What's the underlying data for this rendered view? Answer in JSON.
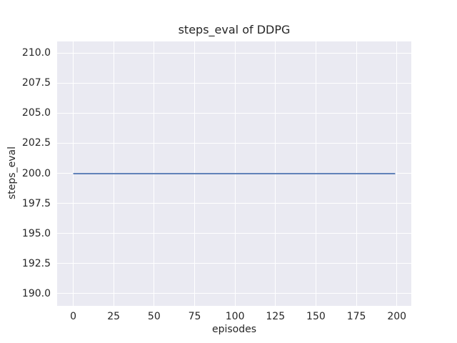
{
  "figure": {
    "background": "#ffffff",
    "text_color": "#262626"
  },
  "chart_data": {
    "type": "line",
    "title": "steps_eval of DDPG",
    "xlabel": "episodes",
    "ylabel": "steps_eval",
    "x_ticks": {
      "values": [
        0,
        25,
        50,
        75,
        100,
        125,
        150,
        175,
        200
      ],
      "labels": [
        "0",
        "25",
        "50",
        "75",
        "100",
        "125",
        "150",
        "175",
        "200"
      ]
    },
    "y_ticks": {
      "values": [
        190.0,
        192.5,
        195.0,
        197.5,
        200.0,
        202.5,
        205.0,
        207.5,
        210.0
      ],
      "labels": [
        "190.0",
        "192.5",
        "195.0",
        "197.5",
        "200.0",
        "202.5",
        "205.0",
        "207.5",
        "210.0"
      ]
    },
    "xlim": [
      -9.95,
      208.95
    ],
    "ylim": [
      189.0,
      211.0
    ],
    "grid": true,
    "legend": "none",
    "plot_background": "#eaeaf2",
    "grid_color": "#ffffff",
    "series": [
      {
        "name": "DDPG steps_eval",
        "color": "#4c72b0",
        "line_width": 1.8,
        "x": [
          0,
          199
        ],
        "y": [
          200.0,
          200.0
        ],
        "description": "constant value 200.0 for every episode from 0 to 199"
      }
    ]
  }
}
